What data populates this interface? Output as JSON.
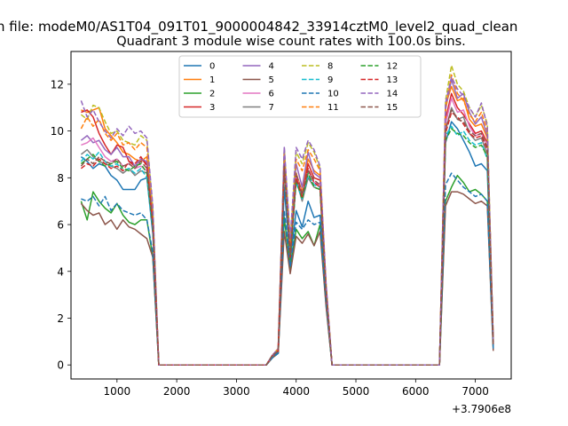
{
  "figure": {
    "suptitle": "n file: modeM0/AS1T04_091T01_9000004842_33914cztM0_level2_quad_clean",
    "title": "Quadrant 3 module wise count rates with 100.0s bins.",
    "x_offset_label": "+3.7906e8"
  },
  "chart_data": {
    "type": "line",
    "title": "Quadrant 3 module wise count rates with 100.0s bins.",
    "xlabel": "",
    "ylabel": "",
    "x_offset": 379060000,
    "xlim": [
      230,
      7600
    ],
    "ylim": [
      -0.6,
      13.4
    ],
    "xticks": [
      1000,
      2000,
      3000,
      4000,
      5000,
      6000,
      7000
    ],
    "xtick_labels": [
      "1000",
      "2000",
      "3000",
      "4000",
      "5000",
      "6000",
      "7000"
    ],
    "yticks": [
      0,
      2,
      4,
      6,
      8,
      10,
      12
    ],
    "ytick_labels": [
      "0",
      "2",
      "4",
      "6",
      "8",
      "10",
      "12"
    ],
    "grid": false,
    "legend": {
      "placement": "top-center",
      "columns": 4
    },
    "x": [
      400,
      500,
      600,
      700,
      800,
      900,
      1000,
      1100,
      1200,
      1300,
      1400,
      1500,
      1600,
      1700,
      1800,
      1900,
      2000,
      2100,
      2200,
      2300,
      2400,
      2500,
      2600,
      2700,
      2800,
      2900,
      3000,
      3100,
      3200,
      3300,
      3400,
      3500,
      3600,
      3700,
      3800,
      3900,
      4000,
      4100,
      4200,
      4300,
      4400,
      4500,
      4600,
      4700,
      4800,
      4900,
      5000,
      5100,
      5200,
      5300,
      5400,
      5500,
      5600,
      5700,
      5800,
      5900,
      6000,
      6100,
      6200,
      6300,
      6400,
      6500,
      6600,
      6700,
      6800,
      6900,
      7000,
      7100,
      7200,
      7300
    ],
    "series": [
      {
        "name": "0",
        "color": "#1f77b4",
        "dashed": false,
        "values": [
          8.9,
          8.7,
          8.4,
          8.6,
          8.5,
          8.1,
          7.9,
          7.5,
          7.5,
          7.5,
          7.9,
          8.0,
          5.6,
          0,
          0,
          0,
          0,
          0,
          0,
          0,
          0,
          0,
          0,
          0,
          0,
          0,
          0,
          0,
          0,
          0,
          0,
          0,
          0.3,
          0.6,
          7.6,
          4.4,
          6.6,
          5.9,
          7.0,
          6.3,
          6.4,
          2.8,
          0,
          0,
          0,
          0,
          0,
          0,
          0,
          0,
          0,
          0,
          0,
          0,
          0,
          0,
          0,
          0,
          0,
          0,
          0,
          9.5,
          10.4,
          10.1,
          9.6,
          9.1,
          8.5,
          8.6,
          8.3,
          0.9
        ]
      },
      {
        "name": "1",
        "color": "#ff7f0e",
        "dashed": false,
        "values": [
          10.9,
          10.8,
          10.9,
          11.0,
          10.1,
          9.8,
          9.5,
          9.1,
          9.0,
          8.8,
          8.7,
          8.9,
          6.4,
          0,
          0,
          0,
          0,
          0,
          0,
          0,
          0,
          0,
          0,
          0,
          0,
          0,
          0,
          0,
          0,
          0,
          0,
          0,
          0.4,
          0.7,
          9.0,
          5.2,
          8.2,
          7.4,
          8.8,
          8.3,
          8.1,
          3.4,
          0,
          0,
          0,
          0,
          0,
          0,
          0,
          0,
          0,
          0,
          0,
          0,
          0,
          0,
          0,
          0,
          0,
          0,
          0,
          11.1,
          11.9,
          11.3,
          11.4,
          10.5,
          10.2,
          10.3,
          9.7,
          1.0
        ]
      },
      {
        "name": "2",
        "color": "#2ca02c",
        "dashed": false,
        "values": [
          7.0,
          6.2,
          7.4,
          7.0,
          6.7,
          6.5,
          6.9,
          6.4,
          6.1,
          6.0,
          6.2,
          6.2,
          4.6,
          0,
          0,
          0,
          0,
          0,
          0,
          0,
          0,
          0,
          0,
          0,
          0,
          0,
          0,
          0,
          0,
          0,
          0,
          0,
          0.3,
          0.5,
          6.3,
          4.1,
          5.8,
          5.4,
          5.7,
          5.1,
          6.0,
          2.6,
          0,
          0,
          0,
          0,
          0,
          0,
          0,
          0,
          0,
          0,
          0,
          0,
          0,
          0,
          0,
          0,
          0,
          0,
          0,
          7.0,
          7.6,
          8.1,
          7.8,
          7.4,
          7.5,
          7.3,
          7.0,
          0.7
        ]
      },
      {
        "name": "3",
        "color": "#d62728",
        "dashed": false,
        "values": [
          10.8,
          10.9,
          10.6,
          9.9,
          9.4,
          9.0,
          9.4,
          9.3,
          8.7,
          8.5,
          8.8,
          8.6,
          6.2,
          0,
          0,
          0,
          0,
          0,
          0,
          0,
          0,
          0,
          0,
          0,
          0,
          0,
          0,
          0,
          0,
          0,
          0,
          0,
          0.4,
          0.7,
          8.8,
          5.0,
          8.0,
          7.2,
          8.6,
          8.0,
          7.9,
          3.3,
          0,
          0,
          0,
          0,
          0,
          0,
          0,
          0,
          0,
          0,
          0,
          0,
          0,
          0,
          0,
          0,
          0,
          0,
          0,
          10.5,
          11.6,
          11.0,
          10.7,
          10.3,
          9.9,
          10.0,
          9.5,
          1.0
        ]
      },
      {
        "name": "4",
        "color": "#9467bd",
        "dashed": false,
        "values": [
          9.6,
          9.8,
          9.5,
          9.6,
          9.2,
          9.0,
          9.3,
          8.9,
          8.9,
          8.5,
          8.8,
          8.7,
          6.3,
          0,
          0,
          0,
          0,
          0,
          0,
          0,
          0,
          0,
          0,
          0,
          0,
          0,
          0,
          0,
          0,
          0,
          0,
          0,
          0.4,
          0.7,
          9.3,
          4.9,
          8.6,
          7.6,
          9.1,
          8.2,
          8.0,
          3.3,
          0,
          0,
          0,
          0,
          0,
          0,
          0,
          0,
          0,
          0,
          0,
          0,
          0,
          0,
          0,
          0,
          0,
          0,
          0,
          10.9,
          12.2,
          11.4,
          11.6,
          10.8,
          10.3,
          10.6,
          9.8,
          1.0
        ]
      },
      {
        "name": "5",
        "color": "#8c564b",
        "dashed": false,
        "values": [
          6.9,
          6.6,
          6.4,
          6.5,
          6.0,
          6.2,
          5.8,
          6.2,
          5.9,
          5.8,
          5.6,
          5.4,
          4.6,
          0,
          0,
          0,
          0,
          0,
          0,
          0,
          0,
          0,
          0,
          0,
          0,
          0,
          0,
          0,
          0,
          0,
          0,
          0,
          0.3,
          0.5,
          5.7,
          3.9,
          5.5,
          5.2,
          5.6,
          5.1,
          5.7,
          2.5,
          0,
          0,
          0,
          0,
          0,
          0,
          0,
          0,
          0,
          0,
          0,
          0,
          0,
          0,
          0,
          0,
          0,
          0,
          0,
          6.8,
          7.4,
          7.4,
          7.3,
          7.1,
          6.9,
          7.0,
          6.8,
          0.6
        ]
      },
      {
        "name": "6",
        "color": "#e377c2",
        "dashed": false,
        "values": [
          9.4,
          9.5,
          9.7,
          9.3,
          8.9,
          8.7,
          8.8,
          8.5,
          8.6,
          8.4,
          8.5,
          8.3,
          6.0,
          0,
          0,
          0,
          0,
          0,
          0,
          0,
          0,
          0,
          0,
          0,
          0,
          0,
          0,
          0,
          0,
          0,
          0,
          0,
          0.4,
          0.7,
          8.6,
          4.8,
          8.1,
          7.3,
          8.3,
          7.8,
          7.7,
          3.2,
          0,
          0,
          0,
          0,
          0,
          0,
          0,
          0,
          0,
          0,
          0,
          0,
          0,
          0,
          0,
          0,
          0,
          0,
          0,
          10.3,
          11.4,
          10.8,
          10.9,
          10.2,
          9.8,
          9.9,
          9.3,
          0.9
        ]
      },
      {
        "name": "7",
        "color": "#7f7f7f",
        "dashed": false,
        "values": [
          9.0,
          9.2,
          8.9,
          8.7,
          8.6,
          8.5,
          8.4,
          8.2,
          8.4,
          8.1,
          8.3,
          8.2,
          5.9,
          0,
          0,
          0,
          0,
          0,
          0,
          0,
          0,
          0,
          0,
          0,
          0,
          0,
          0,
          0,
          0,
          0,
          0,
          0,
          0.4,
          0.6,
          8.4,
          4.6,
          7.9,
          7.0,
          8.0,
          7.6,
          7.5,
          3.1,
          0,
          0,
          0,
          0,
          0,
          0,
          0,
          0,
          0,
          0,
          0,
          0,
          0,
          0,
          0,
          0,
          0,
          0,
          0,
          10.0,
          11.0,
          10.5,
          10.6,
          9.9,
          9.6,
          9.7,
          9.0,
          0.9
        ]
      },
      {
        "name": "8",
        "color": "#bcbd22",
        "dashed": true,
        "values": [
          10.7,
          10.5,
          11.1,
          11.0,
          10.4,
          9.9,
          10.0,
          9.6,
          9.5,
          9.4,
          9.8,
          9.6,
          6.7,
          0,
          0,
          0,
          0,
          0,
          0,
          0,
          0,
          0,
          0,
          0,
          0,
          0,
          0,
          0,
          0,
          0,
          0,
          0,
          0.4,
          0.7,
          9.2,
          5.3,
          9.1,
          8.6,
          9.5,
          9.1,
          8.4,
          3.4,
          0,
          0,
          0,
          0,
          0,
          0,
          0,
          0,
          0,
          0,
          0,
          0,
          0,
          0,
          0,
          0,
          0,
          0,
          0,
          11.3,
          12.8,
          12.0,
          11.7,
          11.0,
          10.6,
          11.1,
          10.3,
          1.0
        ]
      },
      {
        "name": "9",
        "color": "#17becf",
        "dashed": true,
        "values": [
          8.7,
          9.0,
          8.8,
          9.1,
          8.7,
          8.5,
          8.6,
          8.3,
          8.4,
          8.2,
          8.4,
          8.0,
          5.8,
          0,
          0,
          0,
          0,
          0,
          0,
          0,
          0,
          0,
          0,
          0,
          0,
          0,
          0,
          0,
          0,
          0,
          0,
          0,
          0.4,
          0.6,
          8.5,
          4.5,
          7.8,
          7.1,
          8.1,
          7.7,
          7.6,
          3.1,
          0,
          0,
          0,
          0,
          0,
          0,
          0,
          0,
          0,
          0,
          0,
          0,
          0,
          0,
          0,
          0,
          0,
          0,
          0,
          9.8,
          10.2,
          9.8,
          10.0,
          9.6,
          9.4,
          9.5,
          8.8,
          0.9
        ]
      },
      {
        "name": "10",
        "color": "#1f77b4",
        "dashed": true,
        "values": [
          7.1,
          7.0,
          7.2,
          6.8,
          7.2,
          6.6,
          6.9,
          6.6,
          6.5,
          6.4,
          6.5,
          6.2,
          4.8,
          0,
          0,
          0,
          0,
          0,
          0,
          0,
          0,
          0,
          0,
          0,
          0,
          0,
          0,
          0,
          0,
          0,
          0,
          0,
          0.3,
          0.5,
          6.6,
          4.2,
          6.1,
          5.8,
          6.2,
          6.0,
          6.1,
          2.7,
          0,
          0,
          0,
          0,
          0,
          0,
          0,
          0,
          0,
          0,
          0,
          0,
          0,
          0,
          0,
          0,
          0,
          0,
          0,
          7.7,
          8.2,
          7.9,
          7.6,
          7.4,
          7.2,
          7.3,
          7.0,
          0.7
        ]
      },
      {
        "name": "11",
        "color": "#ff7f0e",
        "dashed": true,
        "values": [
          10.1,
          10.6,
          10.2,
          10.5,
          9.9,
          9.6,
          9.9,
          9.4,
          9.5,
          9.2,
          9.5,
          9.3,
          6.5,
          0,
          0,
          0,
          0,
          0,
          0,
          0,
          0,
          0,
          0,
          0,
          0,
          0,
          0,
          0,
          0,
          0,
          0,
          0,
          0.4,
          0.7,
          9.0,
          5.1,
          8.8,
          8.3,
          9.2,
          8.8,
          8.3,
          3.4,
          0,
          0,
          0,
          0,
          0,
          0,
          0,
          0,
          0,
          0,
          0,
          0,
          0,
          0,
          0,
          0,
          0,
          0,
          0,
          10.9,
          12.4,
          11.6,
          11.3,
          10.7,
          10.4,
          10.8,
          10.0,
          1.0
        ]
      },
      {
        "name": "12",
        "color": "#2ca02c",
        "dashed": true,
        "values": [
          8.6,
          8.8,
          9.0,
          8.7,
          8.5,
          8.6,
          8.7,
          8.4,
          8.3,
          8.5,
          8.6,
          8.2,
          5.9,
          0,
          0,
          0,
          0,
          0,
          0,
          0,
          0,
          0,
          0,
          0,
          0,
          0,
          0,
          0,
          0,
          0,
          0,
          0,
          0.4,
          0.6,
          8.4,
          4.5,
          7.9,
          7.1,
          8.2,
          7.6,
          7.5,
          3.1,
          0,
          0,
          0,
          0,
          0,
          0,
          0,
          0,
          0,
          0,
          0,
          0,
          0,
          0,
          0,
          0,
          0,
          0,
          0,
          9.6,
          10.1,
          9.9,
          9.8,
          9.5,
          9.3,
          9.4,
          8.9,
          0.9
        ]
      },
      {
        "name": "13",
        "color": "#d62728",
        "dashed": true,
        "values": [
          8.4,
          8.6,
          8.5,
          8.8,
          8.6,
          8.4,
          8.5,
          8.3,
          8.7,
          8.6,
          8.9,
          8.5,
          6.0,
          0,
          0,
          0,
          0,
          0,
          0,
          0,
          0,
          0,
          0,
          0,
          0,
          0,
          0,
          0,
          0,
          0,
          0,
          0,
          0.4,
          0.6,
          8.6,
          4.6,
          8.0,
          7.2,
          8.4,
          7.8,
          7.6,
          3.2,
          0,
          0,
          0,
          0,
          0,
          0,
          0,
          0,
          0,
          0,
          0,
          0,
          0,
          0,
          0,
          0,
          0,
          0,
          0,
          9.9,
          10.8,
          10.6,
          10.3,
          9.9,
          9.7,
          9.8,
          9.2,
          0.9
        ]
      },
      {
        "name": "14",
        "color": "#9467bd",
        "dashed": true,
        "values": [
          11.3,
          10.6,
          10.9,
          10.4,
          10.0,
          9.7,
          10.1,
          9.8,
          10.2,
          9.9,
          10.0,
          9.7,
          6.8,
          0,
          0,
          0,
          0,
          0,
          0,
          0,
          0,
          0,
          0,
          0,
          0,
          0,
          0,
          0,
          0,
          0,
          0,
          0,
          0.4,
          0.7,
          9.3,
          5.4,
          9.3,
          8.8,
          9.6,
          9.2,
          8.5,
          3.5,
          0,
          0,
          0,
          0,
          0,
          0,
          0,
          0,
          0,
          0,
          0,
          0,
          0,
          0,
          0,
          0,
          0,
          0,
          0,
          11.2,
          12.3,
          11.8,
          11.5,
          11.0,
          10.6,
          11.2,
          10.2,
          1.0
        ]
      },
      {
        "name": "15",
        "color": "#8c564b",
        "dashed": true,
        "values": [
          8.5,
          8.8,
          8.6,
          8.9,
          8.7,
          8.6,
          8.8,
          8.5,
          8.6,
          8.4,
          8.7,
          8.4,
          6.1,
          0,
          0,
          0,
          0,
          0,
          0,
          0,
          0,
          0,
          0,
          0,
          0,
          0,
          0,
          0,
          0,
          0,
          0,
          0,
          0.4,
          0.6,
          8.5,
          4.7,
          8.2,
          7.3,
          8.3,
          7.9,
          7.7,
          3.2,
          0,
          0,
          0,
          0,
          0,
          0,
          0,
          0,
          0,
          0,
          0,
          0,
          0,
          0,
          0,
          0,
          0,
          0,
          0,
          10.1,
          10.9,
          10.5,
          10.4,
          10.0,
          9.8,
          9.9,
          9.3,
          0.9
        ]
      }
    ]
  }
}
